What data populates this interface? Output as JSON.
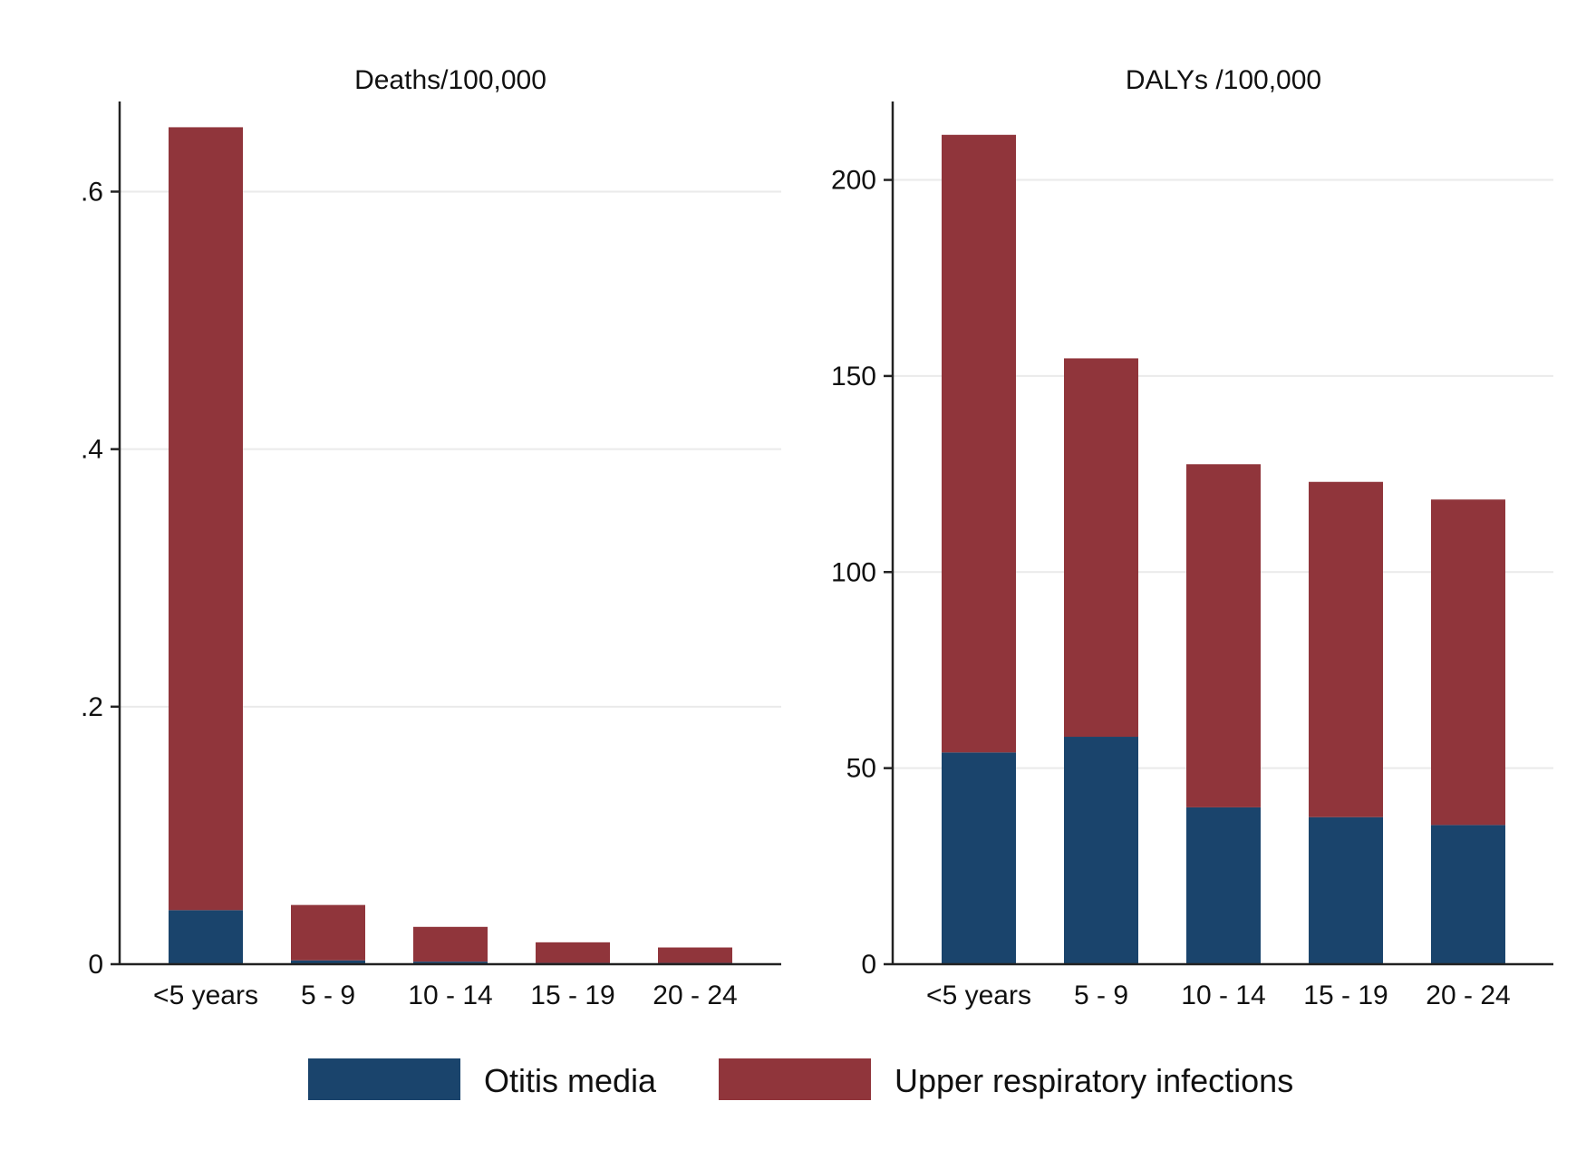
{
  "legend": {
    "items": [
      {
        "label": "Otitis media",
        "color": "#1a446c"
      },
      {
        "label": "Upper respiratory infections",
        "color": "#90353b"
      }
    ]
  },
  "chart_data": [
    {
      "type": "bar",
      "stacked": true,
      "title": "Deaths/100,000",
      "categories": [
        "<5 years",
        "5 - 9",
        "10 - 14",
        "15 - 19",
        "20 - 24"
      ],
      "series": [
        {
          "name": "Otitis media",
          "color": "#1a446c",
          "values": [
            0.042,
            0.003,
            0.002,
            0.001,
            0.001
          ]
        },
        {
          "name": "Upper respiratory infections",
          "color": "#90353b",
          "values": [
            0.608,
            0.043,
            0.027,
            0.016,
            0.012
          ]
        }
      ],
      "ylim": [
        0,
        0.67
      ],
      "yticks": [
        0,
        0.2,
        0.4,
        0.6
      ],
      "ytick_labels": [
        "0",
        ".2",
        ".4",
        ".6"
      ],
      "grid": true
    },
    {
      "type": "bar",
      "stacked": true,
      "title": "DALYs /100,000",
      "categories": [
        "<5 years",
        "5 - 9",
        "10 - 14",
        "15 - 19",
        "20 - 24"
      ],
      "series": [
        {
          "name": "Otitis media",
          "color": "#1a446c",
          "values": [
            54,
            58,
            40,
            37.5,
            35.5
          ]
        },
        {
          "name": "Upper respiratory infections",
          "color": "#90353b",
          "values": [
            157.5,
            96.5,
            87.5,
            85.5,
            83
          ]
        }
      ],
      "ylim": [
        0,
        220
      ],
      "yticks": [
        0,
        50,
        100,
        150,
        200
      ],
      "ytick_labels": [
        "0",
        "50",
        "100",
        "150",
        "200"
      ],
      "grid": true
    }
  ]
}
